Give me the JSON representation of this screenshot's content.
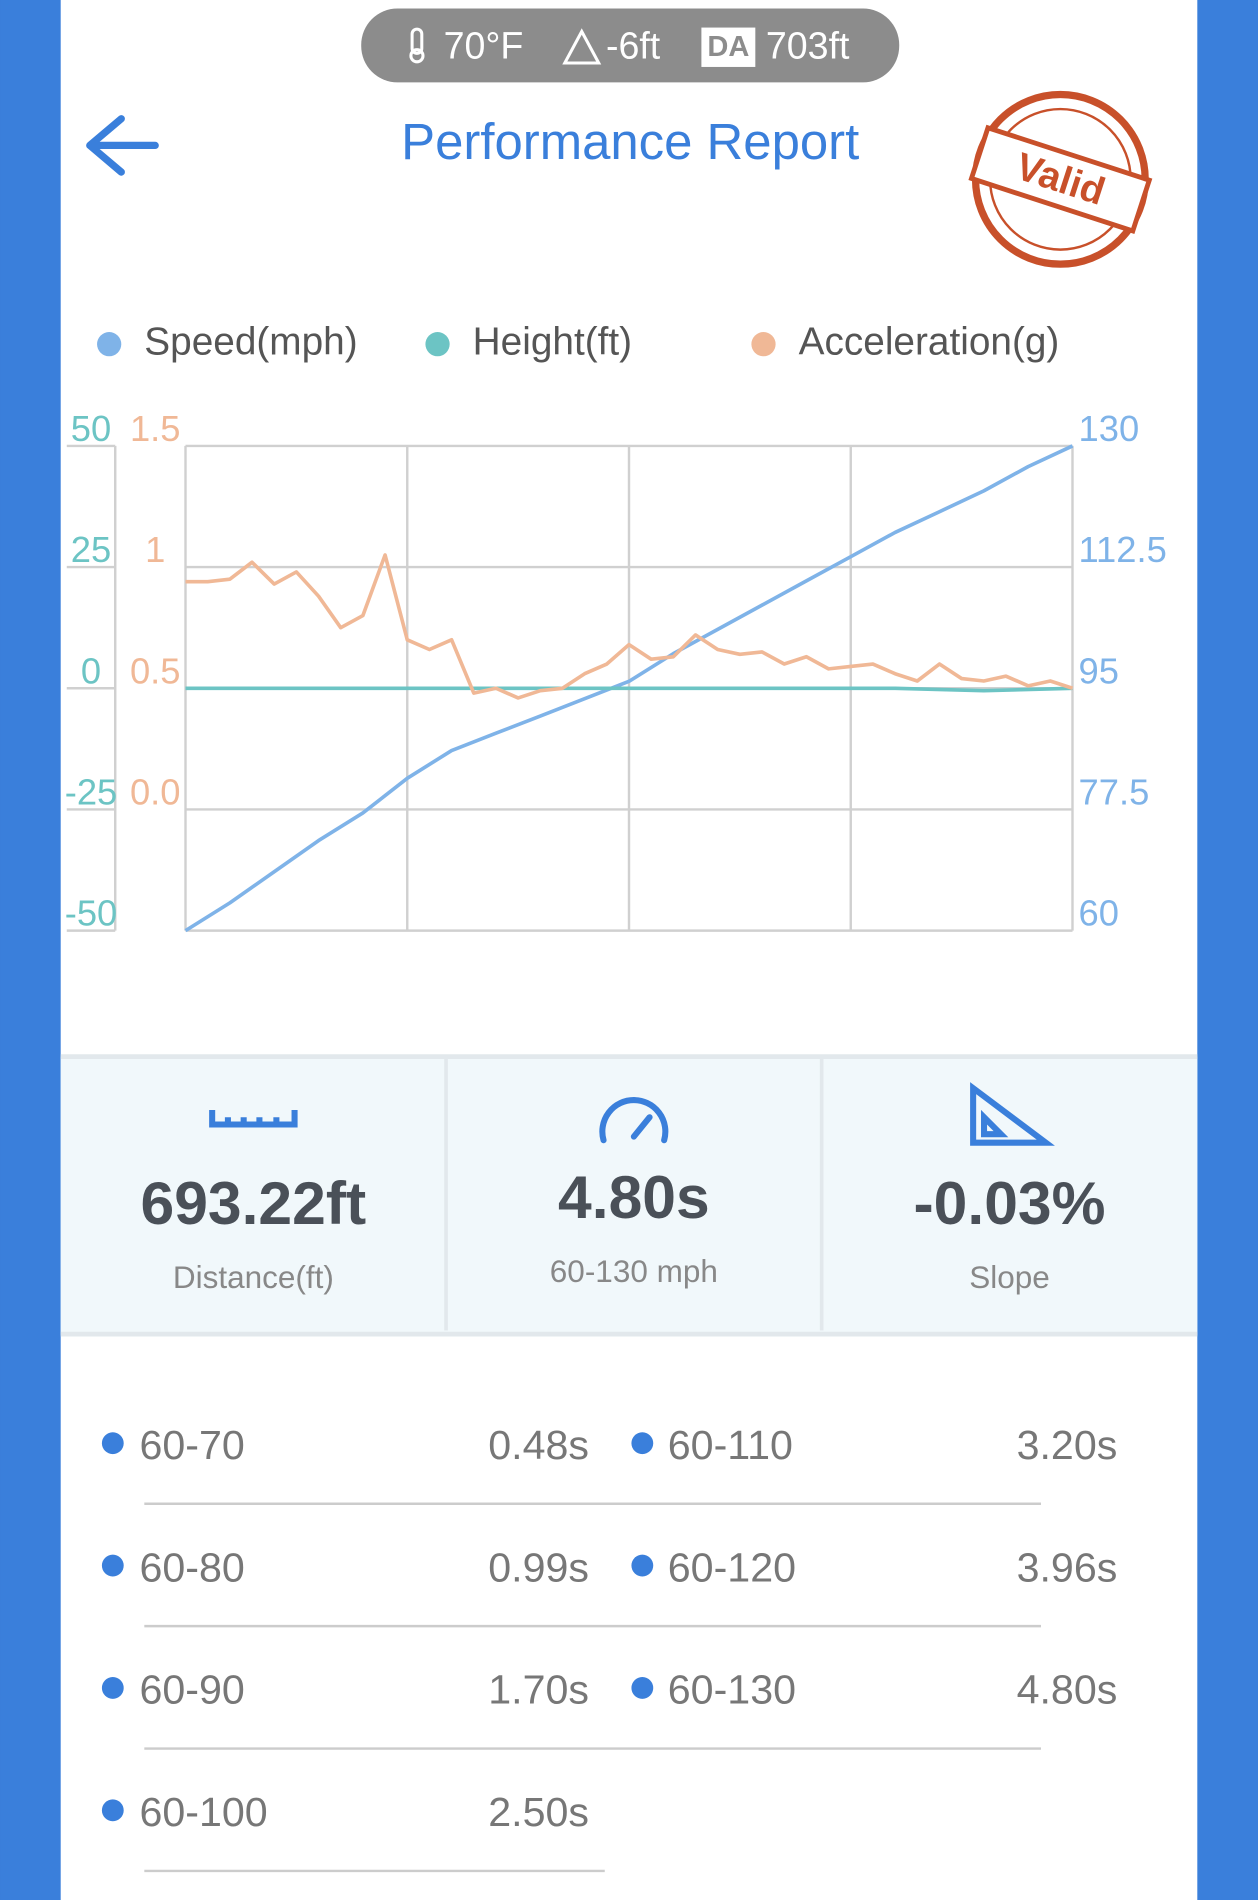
{
  "status_bar": {
    "temperature": "70°F",
    "elevation": "-6ft",
    "da_label": "DA",
    "density_altitude": "703ft"
  },
  "header": {
    "title": "Performance Report",
    "badge": "Valid"
  },
  "chart_data": {
    "type": "line",
    "grid": true,
    "ylim": [
      -50,
      50
    ],
    "yticks": [
      -50,
      -25,
      0,
      25,
      50
    ],
    "y2lim": [
      60,
      130
    ],
    "y2ticks": [
      60,
      77.5,
      95,
      112.5,
      130
    ],
    "y3lim": [
      -0.5,
      1.5
    ],
    "y3ticks": [
      {
        "value": 0,
        "label": "0.0"
      },
      0.5,
      1,
      1.5
    ],
    "series": [
      {
        "name": "Speed(mph)",
        "color": "#7fb3e8",
        "axis": "y2",
        "values": [
          60,
          64,
          68.5,
          73,
          77,
          82,
          86,
          88.5,
          91,
          93.5,
          96,
          100,
          103.5,
          107,
          110.5,
          114,
          117.5,
          120.5,
          123.5,
          127,
          130
        ]
      },
      {
        "name": "Height(ft)",
        "color": "#6cc4c4",
        "axis": "y",
        "values": [
          0,
          0,
          0,
          0,
          0,
          0,
          0,
          0,
          0,
          -0.5,
          0
        ]
      },
      {
        "name": "Acceleration(g)",
        "color": "#f0b896",
        "axis": "y3",
        "values": [
          0.94,
          0.94,
          0.95,
          1.02,
          0.93,
          0.98,
          0.88,
          0.75,
          0.8,
          1.05,
          0.7,
          0.66,
          0.7,
          0.48,
          0.5,
          0.46,
          0.49,
          0.5,
          0.56,
          0.6,
          0.68,
          0.62,
          0.63,
          0.72,
          0.66,
          0.64,
          0.65,
          0.6,
          0.63,
          0.58,
          0.59,
          0.6,
          0.56,
          0.53,
          0.6,
          0.54,
          0.53,
          0.55,
          0.51,
          0.53,
          0.5
        ]
      }
    ]
  },
  "summary": [
    {
      "value": "693.22ft",
      "label": "Distance(ft)"
    },
    {
      "value": "4.80s",
      "label": "60-130 mph"
    },
    {
      "value": "-0.03%",
      "label": "Slope"
    }
  ],
  "splits": [
    {
      "range": "60-70",
      "time": "0.48s"
    },
    {
      "range": "60-80",
      "time": "0.99s"
    },
    {
      "range": "60-90",
      "time": "1.70s"
    },
    {
      "range": "60-100",
      "time": "2.50s"
    },
    {
      "range": "60-110",
      "time": "3.20s"
    },
    {
      "range": "60-120",
      "time": "3.96s"
    },
    {
      "range": "60-130",
      "time": "4.80s"
    }
  ]
}
